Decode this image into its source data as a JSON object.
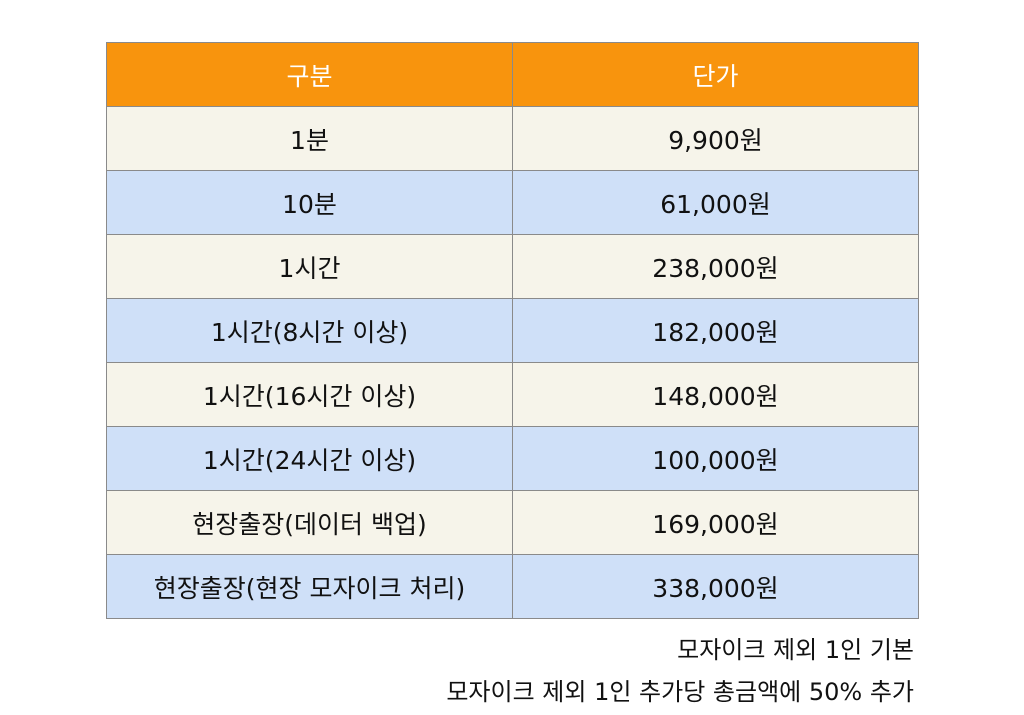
{
  "table": {
    "headers": [
      "구분",
      "단가"
    ],
    "rows": [
      {
        "category": "1분",
        "price": "9,900원"
      },
      {
        "category": "10분",
        "price": "61,000원"
      },
      {
        "category": "1시간",
        "price": "238,000원"
      },
      {
        "category": "1시간(8시간 이상)",
        "price": "182,000원"
      },
      {
        "category": "1시간(16시간 이상)",
        "price": "148,000원"
      },
      {
        "category": "1시간(24시간 이상)",
        "price": "100,000원"
      },
      {
        "category": "현장출장(데이터 백업)",
        "price": "169,000원"
      },
      {
        "category": "현장출장(현장 모자이크 처리)",
        "price": "338,000원"
      }
    ]
  },
  "notes": [
    "모자이크 제외 1인 기본",
    "모자이크 제외 1인 추가당 총금액에 50% 추가"
  ],
  "colors": {
    "header_bg": "#f8940d",
    "header_text": "#ffffff",
    "row_odd_bg": "#f6f4ea",
    "row_even_bg": "#cfe0f8",
    "border": "#8a8a8a"
  }
}
